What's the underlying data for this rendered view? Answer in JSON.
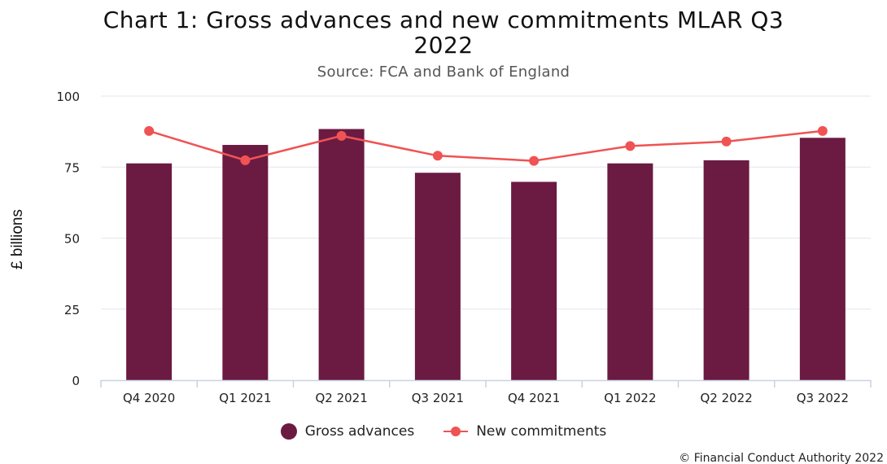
{
  "page": {
    "title_line1": "Chart 1: Gross advances and new commitments MLAR Q3",
    "title_line2": "2022",
    "subtitle": "Source: FCA and Bank of England",
    "credit": "© Financial Conduct Authority 2022"
  },
  "chart_data": {
    "type": "bar",
    "title": "Chart 1: Gross advances and new commitments MLAR Q3 2022",
    "subtitle": "Source: FCA and Bank of England",
    "xlabel": "",
    "ylabel": "£ billions",
    "ylim": [
      0,
      100
    ],
    "yticks": [
      0,
      25,
      50,
      75,
      100
    ],
    "grid": true,
    "legend_position": "bottom",
    "categories": [
      "Q4 2020",
      "Q1 2021",
      "Q2 2021",
      "Q3 2021",
      "Q4 2021",
      "Q1 2022",
      "Q2 2022",
      "Q3 2022"
    ],
    "series": [
      {
        "name": "Gross advances",
        "type": "bar",
        "color": "#6b1a42",
        "values": [
          76.3,
          82.8,
          88.4,
          73.0,
          69.8,
          76.3,
          77.4,
          85.3
        ]
      },
      {
        "name": "New commitments",
        "type": "line",
        "color": "#ef5353",
        "values": [
          87.7,
          77.4,
          86.0,
          79.0,
          77.2,
          82.4,
          84.0,
          87.7
        ]
      }
    ]
  }
}
